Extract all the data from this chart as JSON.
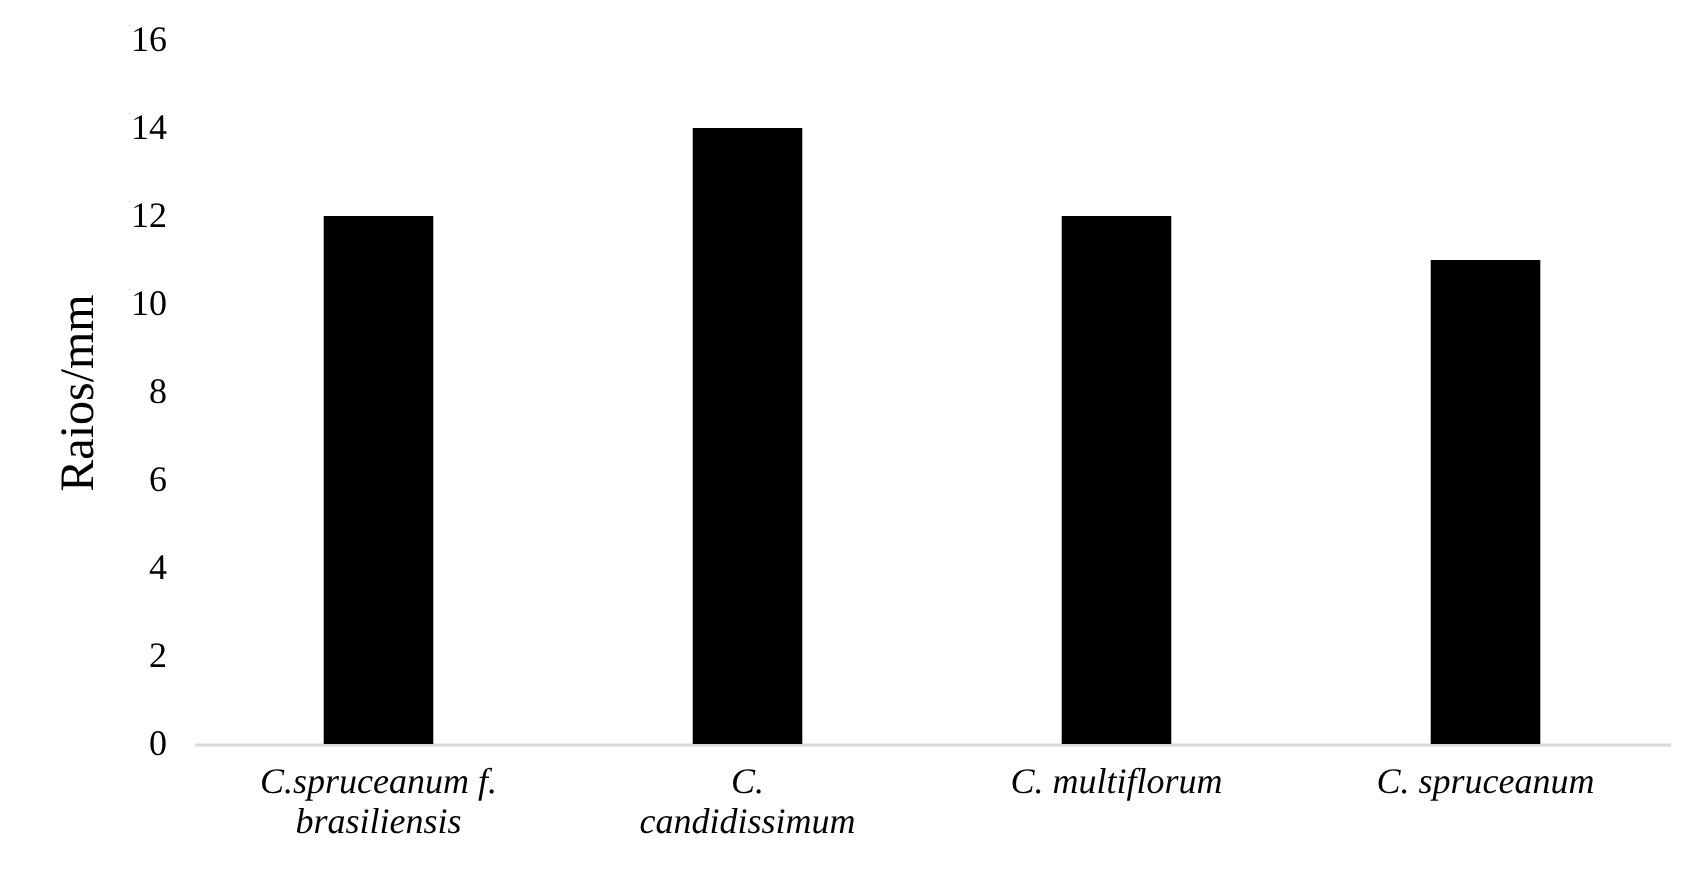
{
  "chart_data": {
    "type": "bar",
    "ylabel": "Raios/mm",
    "categories": [
      "C.spruceanum f. brasiliensis",
      "C. candidissimum",
      "C. multiflorum",
      "C. spruceanum"
    ],
    "values": [
      12,
      14,
      12,
      11
    ],
    "color": "#000000",
    "ylim": [
      0,
      16
    ],
    "yticks": [
      0,
      2,
      4,
      6,
      8,
      10,
      12,
      14,
      16
    ],
    "grid": false
  }
}
